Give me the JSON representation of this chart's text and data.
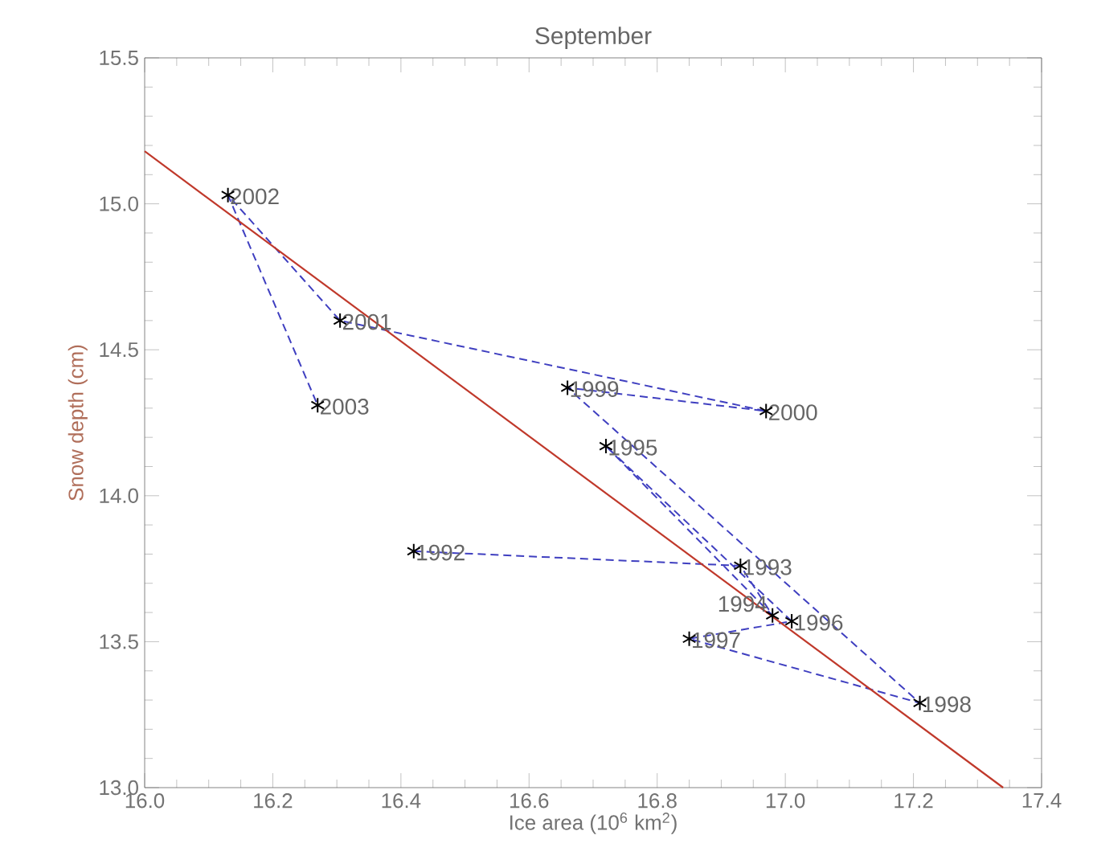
{
  "chart_data": {
    "type": "scatter",
    "title": "September",
    "xlabel": "Ice area (10$^{6}$ km$^{2}$)",
    "ylabel": "Snow depth (cm)",
    "xlim": [
      16.0,
      17.4
    ],
    "ylim": [
      13.0,
      15.5
    ],
    "xticks": [
      {
        "value": 16.0,
        "label": "16.0"
      },
      {
        "value": 16.2,
        "label": "16.2"
      },
      {
        "value": 16.4,
        "label": "16.4"
      },
      {
        "value": 16.6,
        "label": "16.6"
      },
      {
        "value": 16.8,
        "label": "16.8"
      },
      {
        "value": 17.0,
        "label": "17.0"
      },
      {
        "value": 17.2,
        "label": "17.2"
      },
      {
        "value": 17.4,
        "label": "17.4"
      }
    ],
    "yticks": [
      {
        "value": 13.0,
        "label": "13.0"
      },
      {
        "value": 13.5,
        "label": "13.5"
      },
      {
        "value": 14.0,
        "label": "14.0"
      },
      {
        "value": 14.5,
        "label": "14.5"
      },
      {
        "value": 15.0,
        "label": "15.0"
      },
      {
        "value": 15.5,
        "label": "15.5"
      }
    ],
    "series": [
      {
        "type": "line",
        "color": "#3f3fc0",
        "line_style": "dashed",
        "marker": "none",
        "x": [
          16.42,
          16.93,
          16.98,
          16.72,
          17.01,
          16.85,
          17.21,
          16.66,
          16.97,
          16.305,
          16.13,
          16.27
        ],
        "values": [
          13.81,
          13.76,
          13.59,
          14.17,
          13.57,
          13.51,
          13.29,
          14.37,
          14.29,
          14.6,
          15.03,
          14.31
        ]
      },
      {
        "color": "#000000",
        "marker": "cross",
        "x": [
          16.42,
          16.93,
          16.98,
          16.72,
          17.01,
          16.85,
          17.21,
          16.66,
          16.97,
          16.305,
          16.13,
          16.27
        ],
        "values": [
          13.81,
          13.76,
          13.59,
          14.17,
          13.57,
          13.51,
          13.29,
          14.37,
          14.29,
          14.6,
          15.03,
          14.31
        ]
      },
      {
        "type": "line",
        "color": "#c0392b",
        "line_style": "solid",
        "marker": "none",
        "x": [
          16.0,
          17.34
        ],
        "values": [
          15.18,
          13.0
        ]
      }
    ],
    "annotations": [
      {
        "text": "1992",
        "x": 16.42,
        "y": 13.81
      },
      {
        "text": "1993",
        "x": 16.93,
        "y": 13.76
      },
      {
        "text": "1994",
        "x": 16.98,
        "y": 13.59
      },
      {
        "text": "1995",
        "x": 16.72,
        "y": 14.17
      },
      {
        "text": "1996",
        "x": 17.01,
        "y": 13.57
      },
      {
        "text": "1997",
        "x": 16.85,
        "y": 13.51
      },
      {
        "text": "1998",
        "x": 17.21,
        "y": 13.29
      },
      {
        "text": "1999",
        "x": 16.66,
        "y": 14.37
      },
      {
        "text": "2000",
        "x": 16.97,
        "y": 14.29
      },
      {
        "text": "2001",
        "x": 16.305,
        "y": 14.6
      },
      {
        "text": "2002",
        "x": 16.13,
        "y": 15.03
      },
      {
        "text": "2003",
        "x": 16.27,
        "y": 14.31
      }
    ]
  }
}
